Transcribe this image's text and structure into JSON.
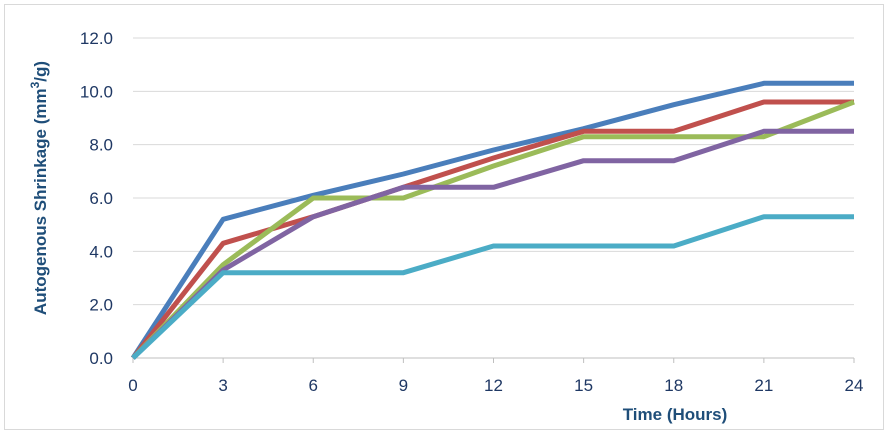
{
  "chart_data": {
    "type": "line",
    "title": "",
    "xlabel": "Time (Hours)",
    "ylabel_main": "Autogenous Shrinkage (mm",
    "ylabel_sup": "3",
    "ylabel_end": "/g)",
    "x": [
      0,
      3,
      6,
      9,
      12,
      15,
      18,
      21,
      24
    ],
    "x_ticks": [
      "0",
      "3",
      "6",
      "9",
      "12",
      "15",
      "18",
      "21",
      "24"
    ],
    "y_ticks": [
      "0.0",
      "2.0",
      "4.0",
      "6.0",
      "8.0",
      "10.0",
      "12.0"
    ],
    "xlim": [
      0,
      24
    ],
    "ylim": [
      0,
      12
    ],
    "grid": "horizontal",
    "series": [
      {
        "color": "#4a7ebb",
        "values": [
          0.0,
          5.2,
          6.1,
          6.9,
          7.8,
          8.6,
          9.5,
          10.3,
          10.3
        ]
      },
      {
        "color": "#c0504d",
        "values": [
          0.0,
          4.3,
          5.3,
          6.4,
          7.5,
          8.5,
          8.5,
          9.6,
          9.6
        ]
      },
      {
        "color": "#9bbb59",
        "values": [
          0.0,
          3.5,
          6.0,
          6.0,
          7.2,
          8.3,
          8.3,
          8.3,
          9.6
        ]
      },
      {
        "color": "#8064a2",
        "values": [
          0.0,
          3.3,
          5.3,
          6.4,
          6.4,
          7.4,
          7.4,
          8.5,
          8.5
        ]
      },
      {
        "color": "#4bacc6",
        "values": [
          0.0,
          3.2,
          3.2,
          3.2,
          4.2,
          4.2,
          4.2,
          5.3,
          5.3
        ]
      }
    ]
  }
}
